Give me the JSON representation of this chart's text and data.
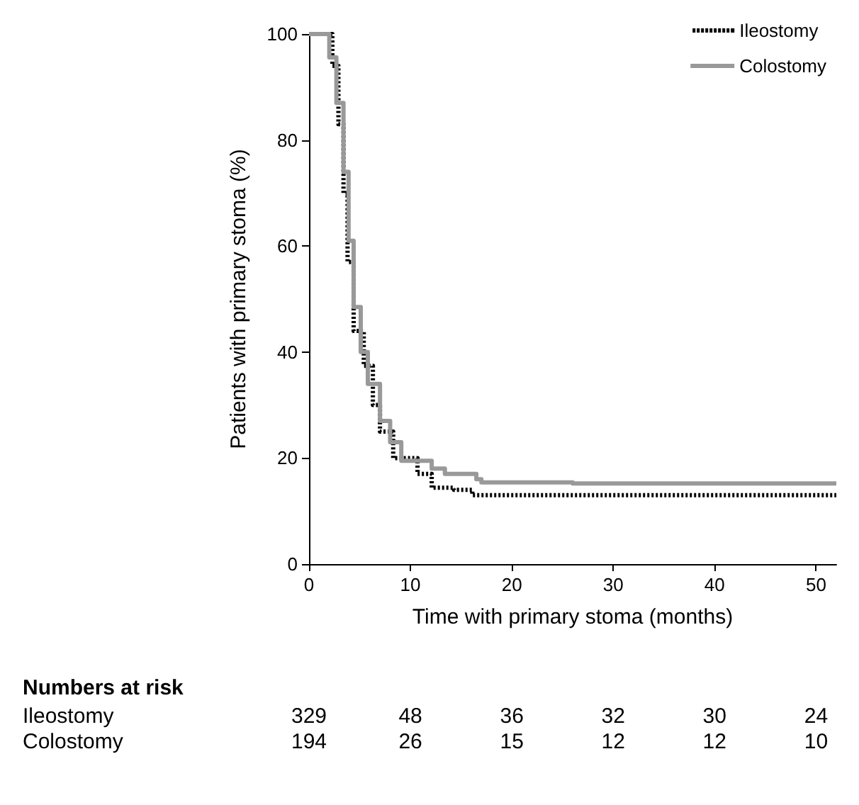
{
  "chart_data": {
    "type": "step",
    "xlabel": "Time with primary stoma (months)",
    "ylabel": "Patients with primary stoma (%)",
    "xlim": [
      0,
      52
    ],
    "ylim": [
      0,
      100
    ],
    "xticks": [
      0,
      10,
      20,
      30,
      40,
      50
    ],
    "yticks": [
      0,
      20,
      40,
      60,
      80,
      100
    ],
    "grid": false,
    "legend": "top right",
    "marker": "none",
    "series": [
      {
        "name": "Ileostomy",
        "color": "#000000",
        "line_style": "dotted",
        "x": [
          0,
          1.3,
          2.3,
          2.9,
          3.4,
          3.8,
          4.4,
          5.4,
          6.3,
          7.0,
          8.3,
          10.7,
          12.1,
          14.3,
          16.1,
          52
        ],
        "values": [
          100,
          100,
          94,
          83,
          70,
          57,
          44,
          37.4,
          30,
          25,
          20,
          17,
          14.4,
          14,
          13,
          13
        ]
      },
      {
        "name": "Colostomy",
        "color": "#999999",
        "line_style": "solid",
        "x": [
          0,
          1.3,
          2.0,
          2.7,
          3.4,
          3.9,
          4.4,
          5.1,
          5.8,
          7.0,
          8.0,
          9.1,
          12.1,
          13.4,
          16.5,
          17,
          26,
          52
        ],
        "values": [
          100,
          100,
          95.6,
          87,
          74,
          61,
          48.5,
          40,
          34,
          27,
          23,
          19.5,
          18,
          17,
          16,
          15.4,
          15.2,
          15.2
        ]
      }
    ],
    "annotations": [
      "Numbers at risk",
      "Ileostomy",
      "329",
      "48",
      "36",
      "32",
      "30",
      "24",
      "Colostomy",
      "194",
      "26",
      "15",
      "12",
      "12",
      "10"
    ]
  }
}
